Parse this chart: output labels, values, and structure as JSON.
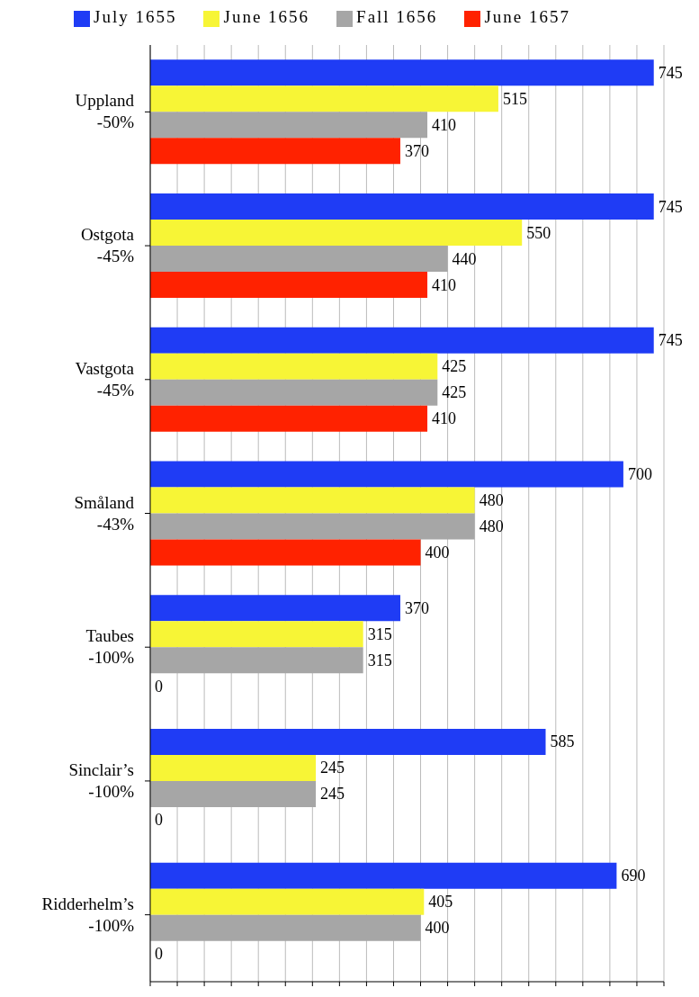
{
  "chart_data": {
    "type": "bar",
    "orientation": "horizontal",
    "categories": [
      "Uppland\n-50%",
      "Ostgota\n-45%",
      "Vastgota\n-45%",
      "Småland\n-43%",
      "Taubes\n-100%",
      "Sinclair’s\n-100%",
      "Ridderhelm’s\n-100%"
    ],
    "series": [
      {
        "name": "July 1655",
        "color": "#1f3cf5",
        "values": [
          745,
          745,
          745,
          700,
          370,
          585,
          690
        ]
      },
      {
        "name": "June 1656",
        "color": "#f7f536",
        "values": [
          515,
          550,
          425,
          480,
          315,
          245,
          405
        ]
      },
      {
        "name": "Fall 1656",
        "color": "#a6a6a6",
        "values": [
          410,
          440,
          425,
          480,
          315,
          245,
          400
        ]
      },
      {
        "name": "June 1657",
        "color": "#ff2200",
        "values": [
          370,
          410,
          410,
          400,
          0,
          0,
          0
        ]
      }
    ],
    "xlim": [
      0,
      760
    ],
    "xticks": [
      {
        "value": 0,
        "label": null
      },
      {
        "value": 40,
        "label": null
      },
      {
        "value": 80,
        "label": null
      },
      {
        "value": 120,
        "label": null
      },
      {
        "value": 160,
        "label": null
      },
      {
        "value": 200,
        "label": null
      },
      {
        "value": 240,
        "label": null
      },
      {
        "value": 280,
        "label": null
      },
      {
        "value": 320,
        "label": null
      },
      {
        "value": 360,
        "label": null
      },
      {
        "value": 400,
        "label": null
      },
      {
        "value": 440,
        "label": null
      },
      {
        "value": 480,
        "label": null
      },
      {
        "value": 520,
        "label": null
      },
      {
        "value": 560,
        "label": null
      },
      {
        "value": 600,
        "label": null
      },
      {
        "value": 640,
        "label": null
      },
      {
        "value": 680,
        "label": null
      },
      {
        "value": 720,
        "label": null
      },
      {
        "value": 760,
        "label": null
      }
    ],
    "grid": "x",
    "legend": "top",
    "data_labels": true,
    "tick_labels": "y"
  }
}
